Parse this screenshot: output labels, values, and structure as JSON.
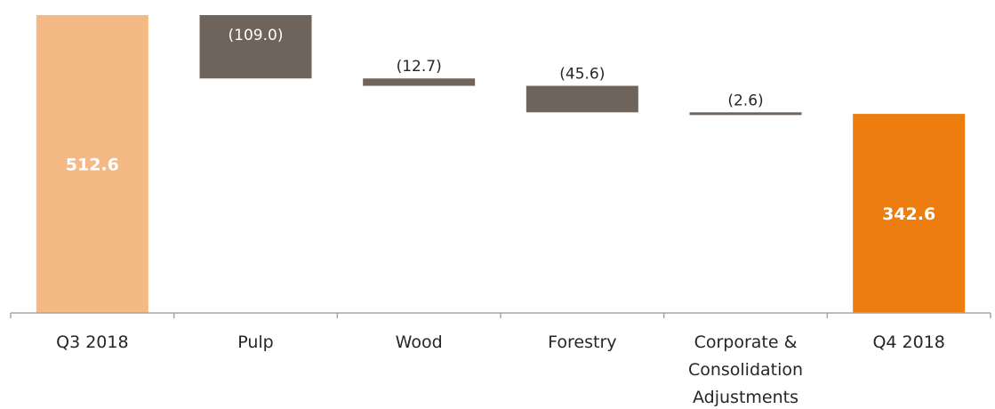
{
  "chart_data": {
    "type": "waterfall",
    "title": "",
    "categories": [
      [
        "Q3 2018"
      ],
      [
        "Pulp"
      ],
      [
        "Wood"
      ],
      [
        "Forestry"
      ],
      [
        "Corporate &",
        "Consolidation",
        "Adjustments"
      ],
      [
        "Q4 2018"
      ]
    ],
    "steps": [
      {
        "kind": "total",
        "value": 512.6,
        "label": "512.6"
      },
      {
        "kind": "delta",
        "value": -109.0,
        "label": "(109.0)"
      },
      {
        "kind": "delta",
        "value": -12.7,
        "label": "(12.7)"
      },
      {
        "kind": "delta",
        "value": -45.6,
        "label": "(45.6)"
      },
      {
        "kind": "delta",
        "value": -2.6,
        "label": "(2.6)"
      },
      {
        "kind": "total",
        "value": 342.6,
        "label": "342.6"
      }
    ],
    "colors": {
      "start_total": "#F4B984",
      "end_total": "#ED7D0E",
      "delta": "#6E645B",
      "axis": "#A6A6A6",
      "text": "#262626"
    },
    "ylim": [
      0,
      512.6
    ],
    "grid": false,
    "legend": "none"
  }
}
